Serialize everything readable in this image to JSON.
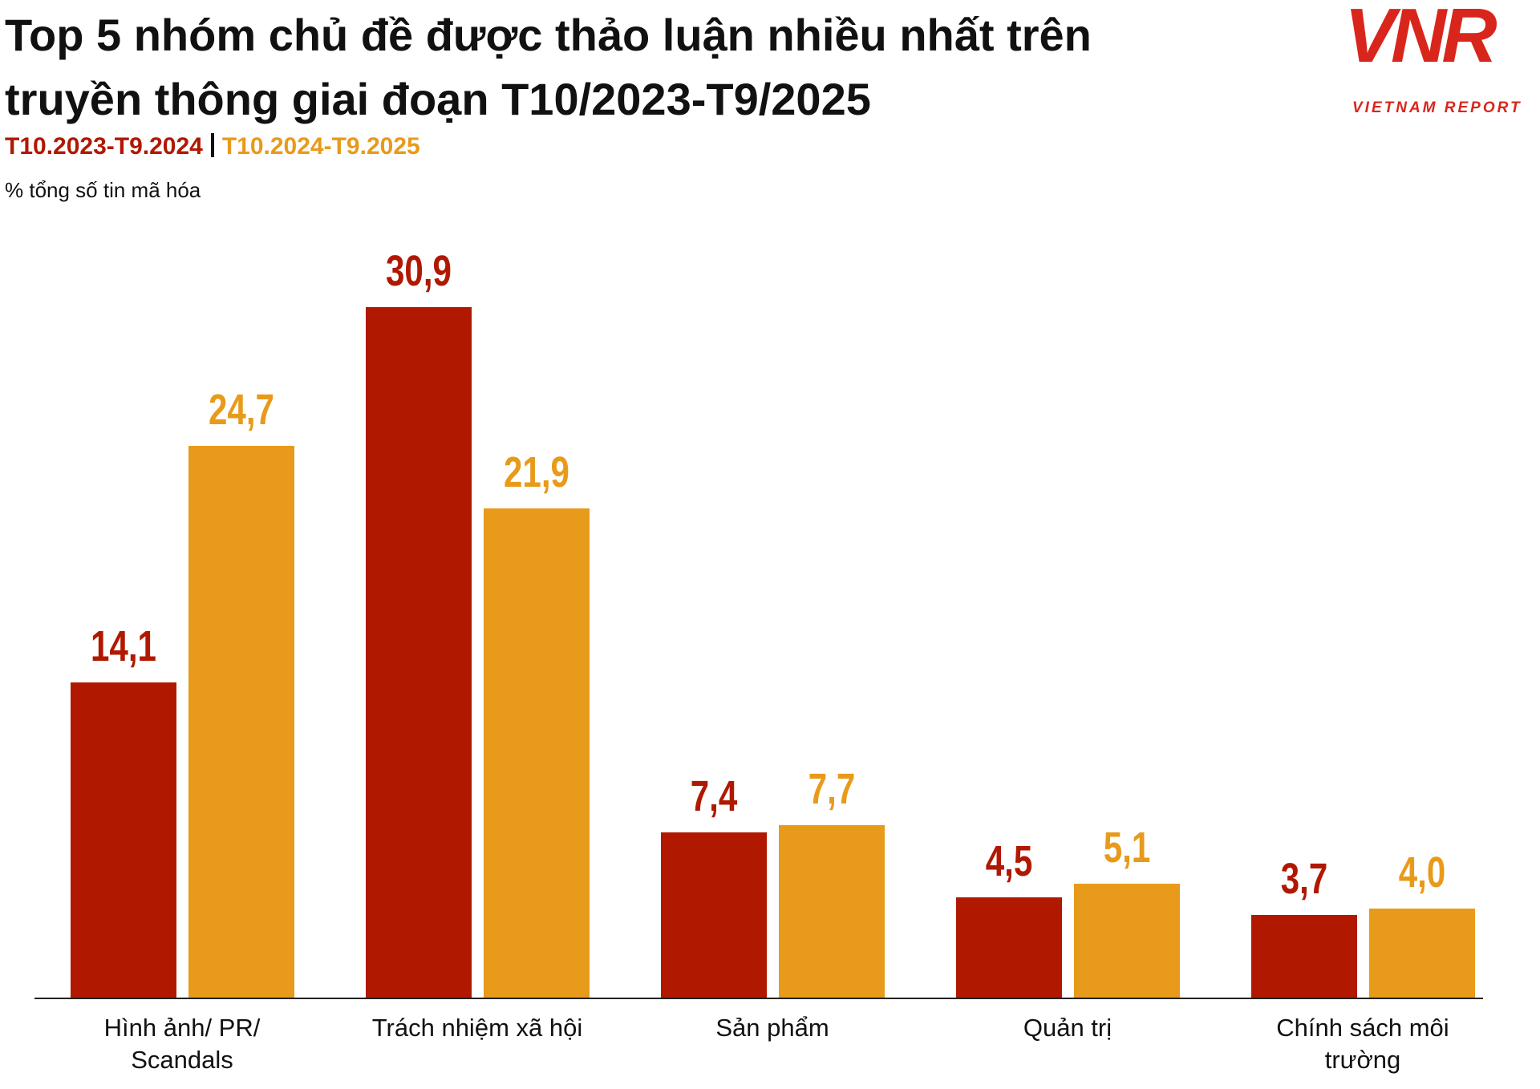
{
  "chart_data": {
    "type": "bar",
    "title": "Top 5 nhóm chủ đề được thảo luận nhiều nhất trên truyền thông giai đoạn T10/2023-T9/2025",
    "y_label": "% tổng số tin mã hóa",
    "categories": [
      "Hình ảnh/ PR/ Scandals",
      "Trách nhiệm xã hội",
      "Sản phẩm",
      "Quản trị",
      "Chính sách môi trường"
    ],
    "series": [
      {
        "name": "T10.2023-T9.2024",
        "color": "#b01800",
        "values": [
          14.1,
          30.9,
          7.4,
          4.5,
          3.7
        ],
        "value_labels": [
          "14,1",
          "30,9",
          "7,4",
          "4,5",
          "3,7"
        ]
      },
      {
        "name": "T10.2024-T9.2025",
        "color": "#e89a1a",
        "values": [
          24.7,
          21.9,
          7.7,
          5.1,
          4.0
        ],
        "value_labels": [
          "24,7",
          "21,9",
          "7,7",
          "5,1",
          "4,0"
        ]
      }
    ]
  },
  "logo": {
    "text": "VNR",
    "tagline": "VIETNAM REPORT"
  }
}
